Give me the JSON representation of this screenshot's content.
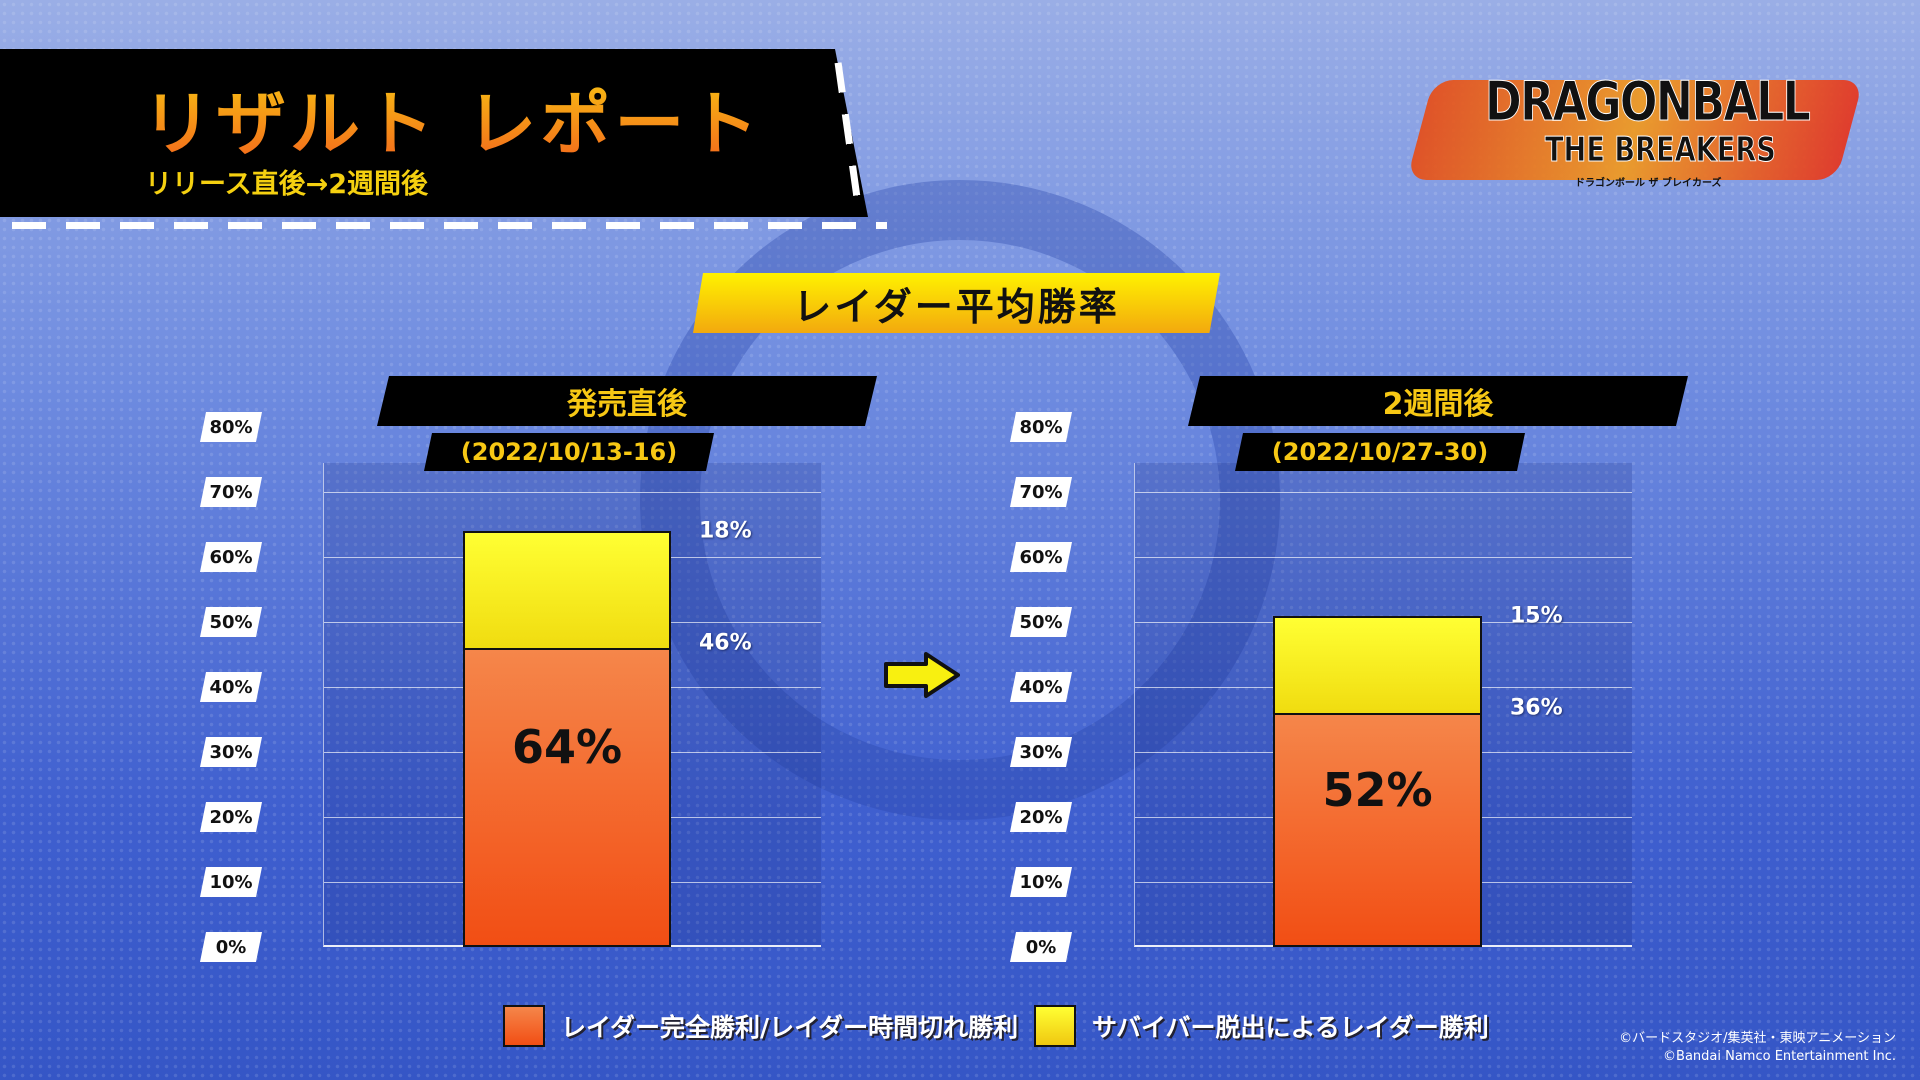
{
  "header": {
    "title": "リザルト レポート",
    "subtitle": "リリース直後→2週間後"
  },
  "logo": {
    "line1": "DRAGONBALL",
    "line2": "THE BREAKERS",
    "line3": "ドラゴンボール ザ ブレイカーズ"
  },
  "colors": {
    "orange": "#f2601c",
    "yellow": "#ffee22",
    "banner": "#f7d010"
  },
  "chart_data": {
    "type": "bar",
    "stacked": true,
    "title": "レイダー平均勝率",
    "ylim": [
      0,
      80
    ],
    "yticks": [
      "0%",
      "10%",
      "20%",
      "30%",
      "40%",
      "50%",
      "60%",
      "70%",
      "80%"
    ],
    "legend": "bottom",
    "series": [
      {
        "name": "レイダー完全勝利/レイダー時間切れ勝利",
        "color": "#f2601c"
      },
      {
        "name": "サバイバー脱出によるレイダー勝利",
        "color": "#ffee22"
      }
    ],
    "panels": [
      {
        "label": "発売直後",
        "date": "(2022/10/13-16)",
        "values": [
          46,
          18
        ],
        "total": 64,
        "value_labels": [
          "46%",
          "18%"
        ],
        "total_label": "64%"
      },
      {
        "label": "2週間後",
        "date": "(2022/10/27-30)",
        "values": [
          36,
          15
        ],
        "total": 52,
        "value_labels": [
          "36%",
          "15%"
        ],
        "total_label": "52%"
      }
    ]
  },
  "arrow_icon": "right-arrow-icon",
  "copyright": [
    "©バードスタジオ/集英社・東映アニメーション",
    "©Bandai Namco Entertainment Inc."
  ]
}
